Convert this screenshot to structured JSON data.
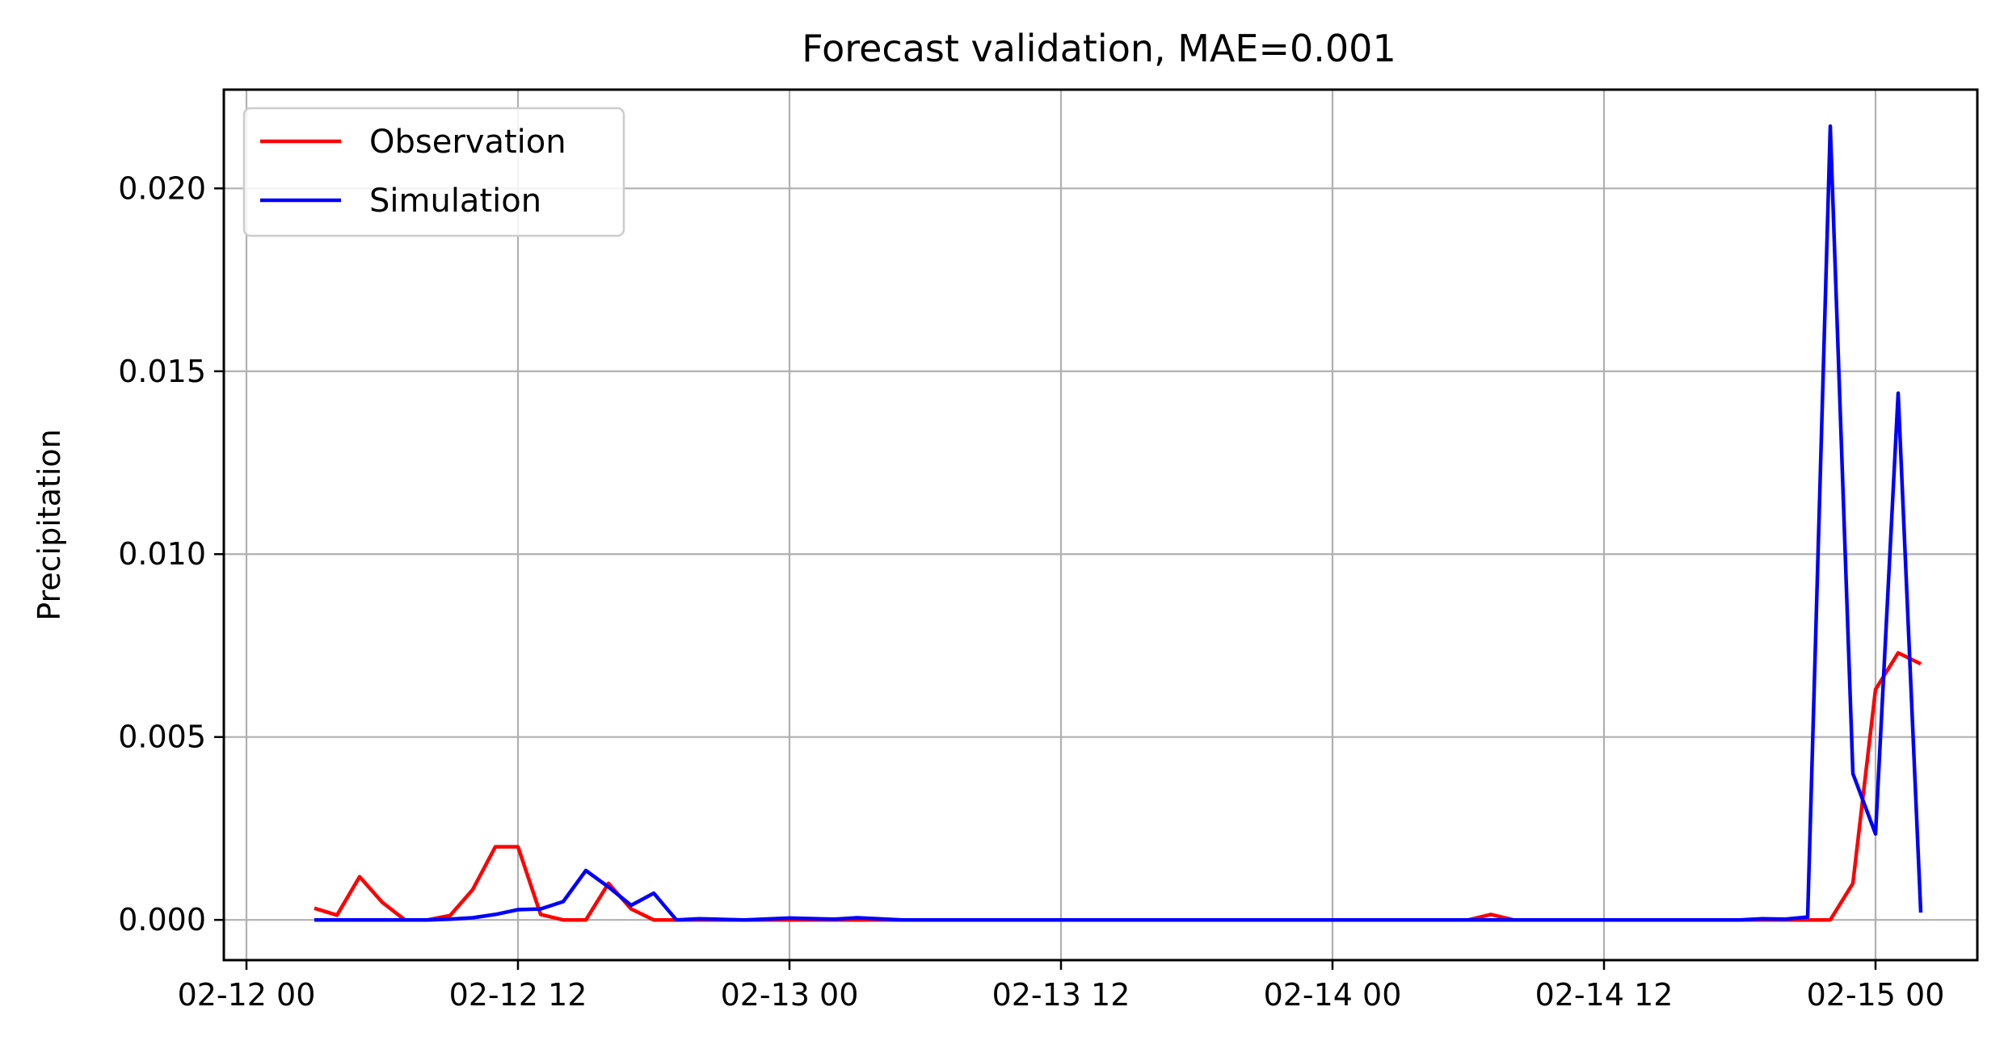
{
  "chart_data": {
    "type": "line",
    "title": "Forecast validation, MAE=0.001",
    "xlabel": "",
    "ylabel": "Precipitation",
    "x_axis_type": "datetime",
    "xlim": [
      "2012-02-11T23:00",
      "2012-02-15T04:30"
    ],
    "ylim": [
      -0.0011,
      0.0227
    ],
    "x_ticks": [
      "02-12 00",
      "02-12 12",
      "02-13 00",
      "02-13 12",
      "02-14 00",
      "02-14 12",
      "02-15 00"
    ],
    "y_ticks": [
      "0.000",
      "0.005",
      "0.010",
      "0.015",
      "0.020"
    ],
    "grid": true,
    "legend_position": "upper-left",
    "series": [
      {
        "name": "Observation",
        "color": "#ff0000",
        "points": [
          [
            "2012-02-12T03:00",
            0.00032
          ],
          [
            "2012-02-12T04:00",
            0.00013
          ],
          [
            "2012-02-12T05:00",
            0.00118
          ],
          [
            "2012-02-12T06:00",
            0.00048
          ],
          [
            "2012-02-12T07:00",
            0.0
          ],
          [
            "2012-02-12T08:00",
            0.0
          ],
          [
            "2012-02-12T09:00",
            0.00012
          ],
          [
            "2012-02-12T10:00",
            0.00083
          ],
          [
            "2012-02-12T11:00",
            0.002
          ],
          [
            "2012-02-12T12:00",
            0.002
          ],
          [
            "2012-02-12T13:00",
            0.00015
          ],
          [
            "2012-02-12T14:00",
            0.0
          ],
          [
            "2012-02-12T15:00",
            0.0
          ],
          [
            "2012-02-12T16:00",
            0.001
          ],
          [
            "2012-02-12T17:00",
            0.0003
          ],
          [
            "2012-02-12T18:00",
            0.0
          ],
          [
            "2012-02-12T19:00",
            0.0
          ],
          [
            "2012-02-12T20:00",
            0.0
          ],
          [
            "2012-02-13T00:00",
            0.0
          ],
          [
            "2012-02-14T06:00",
            0.0
          ],
          [
            "2012-02-14T07:00",
            0.00015
          ],
          [
            "2012-02-14T08:00",
            0.0
          ],
          [
            "2012-02-14T18:00",
            0.0
          ],
          [
            "2012-02-14T21:00",
            0.0
          ],
          [
            "2012-02-14T22:00",
            0.0
          ],
          [
            "2012-02-14T23:00",
            0.001
          ],
          [
            "2012-02-15T00:00",
            0.0063
          ],
          [
            "2012-02-15T01:00",
            0.0073
          ],
          [
            "2012-02-15T02:00",
            0.007
          ]
        ]
      },
      {
        "name": "Simulation",
        "color": "#0000ff",
        "points": [
          [
            "2012-02-12T03:00",
            0.0
          ],
          [
            "2012-02-12T08:00",
            0.0
          ],
          [
            "2012-02-12T09:00",
            2e-05
          ],
          [
            "2012-02-12T10:00",
            6e-05
          ],
          [
            "2012-02-12T11:00",
            0.00015
          ],
          [
            "2012-02-12T12:00",
            0.00028
          ],
          [
            "2012-02-12T13:00",
            0.0003
          ],
          [
            "2012-02-12T14:00",
            0.0005
          ],
          [
            "2012-02-12T15:00",
            0.00135
          ],
          [
            "2012-02-12T16:00",
            0.0009
          ],
          [
            "2012-02-12T17:00",
            0.0004
          ],
          [
            "2012-02-12T18:00",
            0.00073
          ],
          [
            "2012-02-12T19:00",
            0.0
          ],
          [
            "2012-02-12T20:00",
            3e-05
          ],
          [
            "2012-02-12T22:00",
            0.0
          ],
          [
            "2012-02-13T00:00",
            5e-05
          ],
          [
            "2012-02-13T02:00",
            2e-05
          ],
          [
            "2012-02-13T03:00",
            6e-05
          ],
          [
            "2012-02-13T05:00",
            0.0
          ],
          [
            "2012-02-14T00:00",
            0.0
          ],
          [
            "2012-02-14T18:00",
            0.0
          ],
          [
            "2012-02-14T19:00",
            3e-05
          ],
          [
            "2012-02-14T20:00",
            2e-05
          ],
          [
            "2012-02-14T21:00",
            8e-05
          ],
          [
            "2012-02-14T22:00",
            0.0217
          ],
          [
            "2012-02-14T23:00",
            0.004
          ],
          [
            "2012-02-15T00:00",
            0.00235
          ],
          [
            "2012-02-15T01:00",
            0.0144
          ],
          [
            "2012-02-15T02:00",
            0.0002
          ]
        ]
      }
    ]
  }
}
